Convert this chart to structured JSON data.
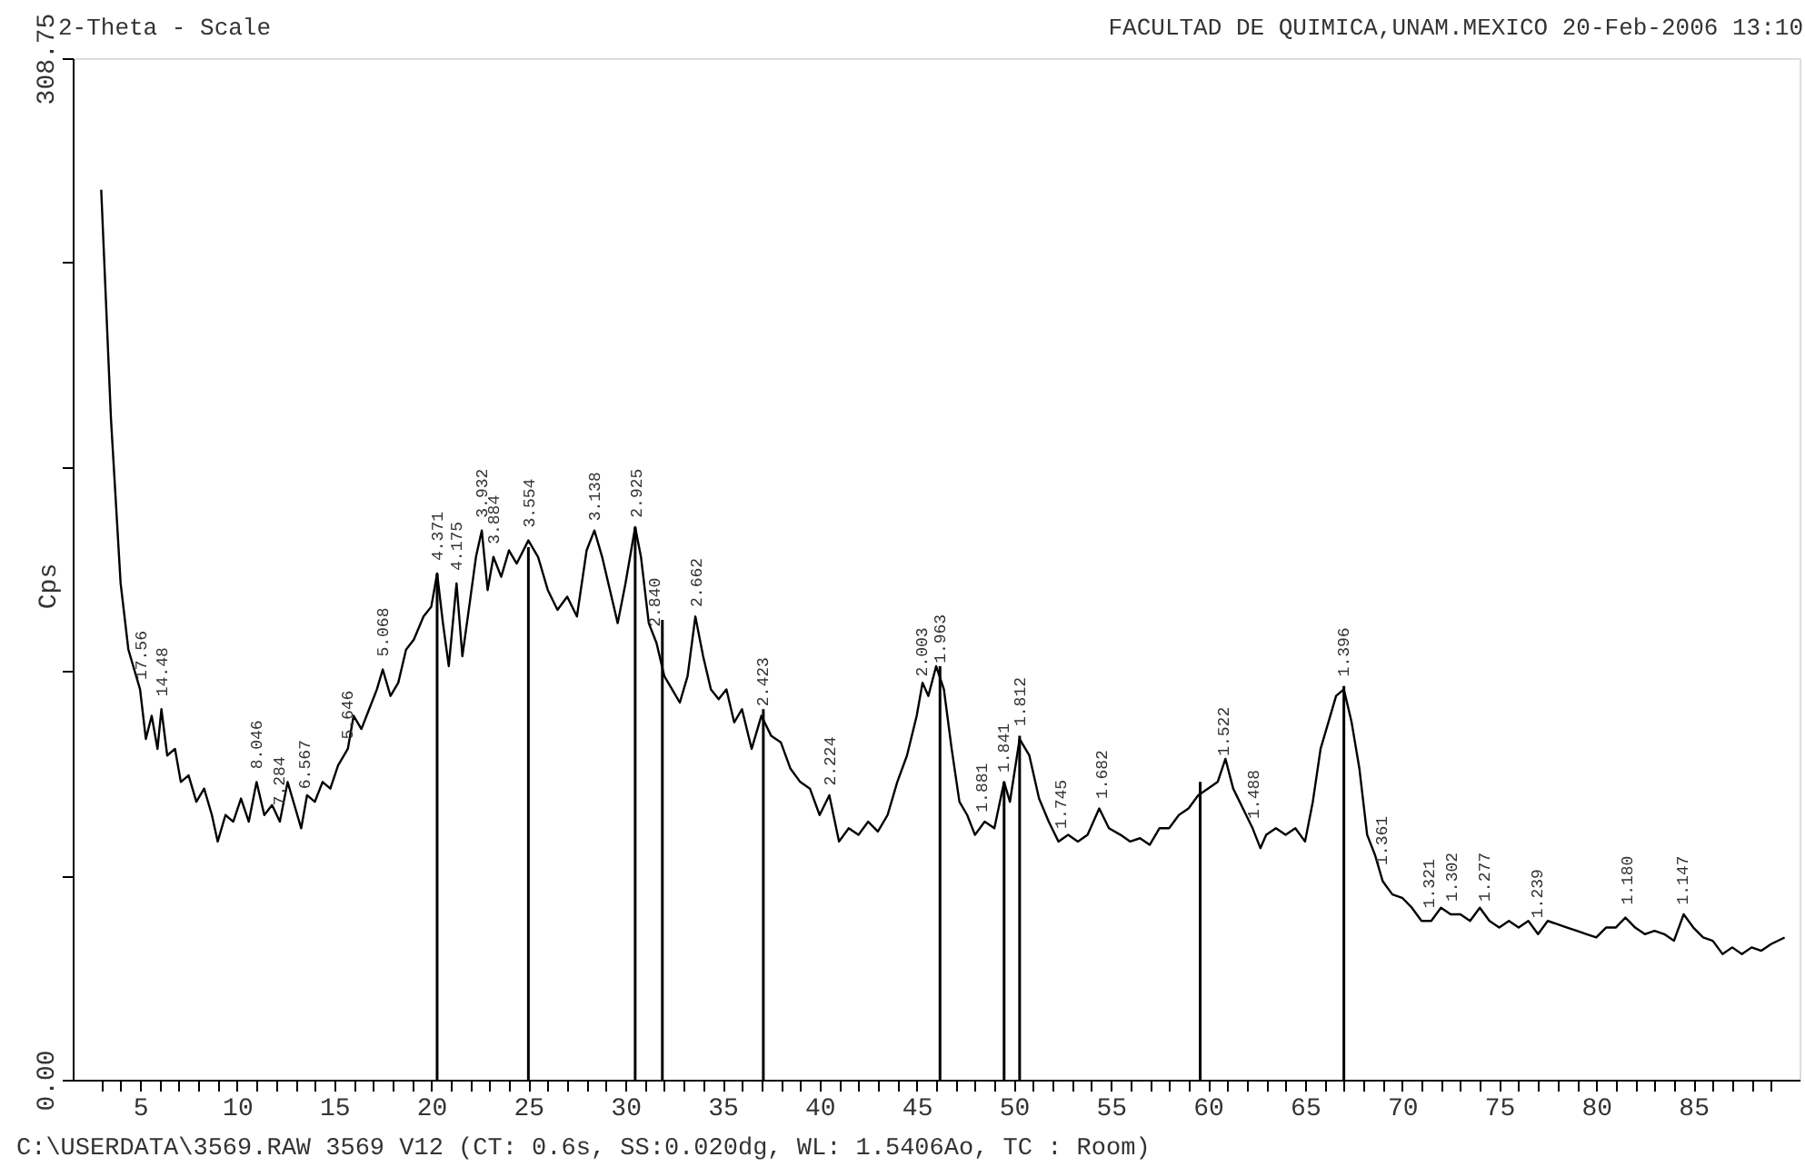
{
  "chart_data": {
    "type": "line",
    "title": "2-Theta - Scale",
    "ylabel": "Cps",
    "xlim": [
      2,
      90
    ],
    "ylim": [
      0,
      308.75
    ],
    "xticks": [
      {
        "value": 3,
        "label": null
      },
      {
        "value": 4,
        "label": null
      },
      5,
      {
        "value": 6,
        "label": null
      },
      {
        "value": 7,
        "label": null
      },
      {
        "value": 8,
        "label": null
      },
      {
        "value": 9,
        "label": null
      },
      10,
      {
        "value": 11,
        "label": null
      },
      {
        "value": 12,
        "label": null
      },
      {
        "value": 13,
        "label": null
      },
      {
        "value": 14,
        "label": null
      },
      15,
      {
        "value": 16,
        "label": null
      },
      {
        "value": 17,
        "label": null
      },
      {
        "value": 18,
        "label": null
      },
      {
        "value": 19,
        "label": null
      },
      20,
      {
        "value": 21,
        "label": null
      },
      {
        "value": 22,
        "label": null
      },
      {
        "value": 23,
        "label": null
      },
      {
        "value": 24,
        "label": null
      },
      25,
      {
        "value": 26,
        "label": null
      },
      {
        "value": 27,
        "label": null
      },
      {
        "value": 28,
        "label": null
      },
      {
        "value": 29,
        "label": null
      },
      30,
      {
        "value": 31,
        "label": null
      },
      {
        "value": 32,
        "label": null
      },
      {
        "value": 33,
        "label": null
      },
      {
        "value": 34,
        "label": null
      },
      35,
      {
        "value": 36,
        "label": null
      },
      {
        "value": 37,
        "label": null
      },
      {
        "value": 38,
        "label": null
      },
      {
        "value": 39,
        "label": null
      },
      40,
      {
        "value": 41,
        "label": null
      },
      {
        "value": 42,
        "label": null
      },
      {
        "value": 43,
        "label": null
      },
      {
        "value": 44,
        "label": null
      },
      45,
      {
        "value": 46,
        "label": null
      },
      {
        "value": 47,
        "label": null
      },
      {
        "value": 48,
        "label": null
      },
      {
        "value": 49,
        "label": null
      },
      50,
      {
        "value": 51,
        "label": null
      },
      {
        "value": 52,
        "label": null
      },
      {
        "value": 53,
        "label": null
      },
      {
        "value": 54,
        "label": null
      },
      55,
      {
        "value": 56,
        "label": null
      },
      {
        "value": 57,
        "label": null
      },
      {
        "value": 58,
        "label": null
      },
      {
        "value": 59,
        "label": null
      },
      60,
      {
        "value": 61,
        "label": null
      },
      {
        "value": 62,
        "label": null
      },
      {
        "value": 63,
        "label": null
      },
      {
        "value": 64,
        "label": null
      },
      65,
      {
        "value": 66,
        "label": null
      },
      {
        "value": 67,
        "label": null
      },
      {
        "value": 68,
        "label": null
      },
      {
        "value": 69,
        "label": null
      },
      70,
      {
        "value": 71,
        "label": null
      },
      {
        "value": 72,
        "label": null
      },
      {
        "value": 73,
        "label": null
      },
      {
        "value": 74,
        "label": null
      },
      75,
      {
        "value": 76,
        "label": null
      },
      {
        "value": 77,
        "label": null
      },
      {
        "value": 78,
        "label": null
      },
      {
        "value": 79,
        "label": null
      },
      80,
      {
        "value": 81,
        "label": null
      },
      {
        "value": 82,
        "label": null
      },
      {
        "value": 83,
        "label": null
      },
      {
        "value": 84,
        "label": null
      },
      85,
      {
        "value": 86,
        "label": null
      },
      {
        "value": 87,
        "label": null
      },
      {
        "value": 88,
        "label": null
      },
      {
        "value": 89,
        "label": null
      }
    ],
    "yticks": [
      {
        "value": 0,
        "label": "0.00"
      },
      {
        "value": 61.75,
        "label": null
      },
      {
        "value": 123.5,
        "label": null
      },
      {
        "value": 185.25,
        "label": null
      },
      {
        "value": 247,
        "label": null
      },
      {
        "value": 308.75,
        "label": "308.75"
      }
    ],
    "grid": false,
    "series": [
      {
        "color": "#000000",
        "x": [
          3.0,
          3.5,
          4.0,
          4.4,
          4.8,
          5.0,
          5.3,
          5.6,
          5.9,
          6.1,
          6.4,
          6.8,
          7.1,
          7.5,
          7.9,
          8.3,
          8.7,
          9.0,
          9.4,
          9.8,
          10.2,
          10.6,
          11.0,
          11.4,
          11.8,
          12.2,
          12.6,
          13.0,
          13.3,
          13.6,
          14.0,
          14.4,
          14.8,
          15.2,
          15.7,
          16.0,
          16.4,
          16.8,
          17.2,
          17.5,
          17.9,
          18.3,
          18.7,
          19.1,
          19.6,
          20.0,
          20.3,
          20.6,
          20.9,
          21.3,
          21.6,
          22.0,
          22.3,
          22.6,
          22.9,
          23.2,
          23.6,
          24.0,
          24.4,
          25.0,
          25.5,
          26.0,
          26.5,
          27.0,
          27.5,
          28.0,
          28.4,
          28.8,
          29.2,
          29.6,
          30.0,
          30.5,
          30.8,
          31.2,
          31.6,
          32.0,
          32.4,
          32.8,
          33.2,
          33.6,
          34.0,
          34.4,
          34.8,
          35.2,
          35.6,
          36.0,
          36.5,
          37.0,
          37.5,
          38.0,
          38.5,
          39.0,
          39.5,
          40.0,
          40.5,
          41.0,
          41.5,
          42.0,
          42.5,
          43.0,
          43.5,
          44.0,
          44.5,
          45.0,
          45.3,
          45.6,
          46.0,
          46.4,
          46.8,
          47.2,
          47.6,
          48.0,
          48.5,
          49.0,
          49.5,
          49.8,
          50.3,
          50.8,
          51.3,
          51.8,
          52.3,
          52.8,
          53.3,
          53.8,
          54.4,
          54.9,
          55.5,
          56.0,
          56.5,
          57.0,
          57.5,
          58.0,
          58.5,
          59.0,
          59.5,
          60.0,
          60.5,
          60.9,
          61.3,
          61.8,
          62.3,
          62.7,
          63.0,
          63.5,
          64.0,
          64.5,
          65.0,
          65.4,
          65.8,
          66.2,
          66.6,
          67.0,
          67.4,
          67.8,
          68.2,
          68.6,
          69.0,
          69.5,
          70.0,
          70.5,
          71.0,
          71.5,
          72.0,
          72.5,
          73.0,
          73.5,
          74.0,
          74.5,
          75.0,
          75.5,
          76.0,
          76.5,
          77.0,
          77.5,
          78.0,
          78.5,
          79.0,
          79.5,
          80.0,
          80.5,
          81.0,
          81.5,
          82.0,
          82.5,
          83.0,
          83.5,
          84.0,
          84.5,
          85.0,
          85.5,
          86.0,
          86.5,
          87.0,
          87.5,
          88.0,
          88.5,
          89.0,
          89.7
        ],
        "values": [
          269,
          200,
          150,
          130,
          122,
          118,
          103,
          110,
          100,
          112,
          98,
          100,
          90,
          92,
          84,
          88,
          80,
          72,
          80,
          78,
          85,
          78,
          90,
          80,
          83,
          78,
          90,
          82,
          76,
          86,
          84,
          90,
          88,
          95,
          100,
          110,
          106,
          112,
          118,
          124,
          116,
          120,
          130,
          133,
          140,
          143,
          153,
          138,
          125,
          150,
          128,
          145,
          158,
          166,
          148,
          158,
          152,
          160,
          156,
          163,
          158,
          148,
          142,
          146,
          140,
          160,
          166,
          158,
          148,
          138,
          150,
          167,
          158,
          138,
          132,
          122,
          118,
          114,
          122,
          140,
          128,
          118,
          115,
          118,
          108,
          112,
          100,
          110,
          104,
          102,
          94,
          90,
          88,
          80,
          86,
          72,
          76,
          74,
          78,
          75,
          80,
          90,
          98,
          110,
          120,
          116,
          125,
          118,
          100,
          84,
          80,
          74,
          78,
          76,
          90,
          84,
          103,
          98,
          85,
          78,
          72,
          74,
          72,
          74,
          82,
          76,
          74,
          72,
          73,
          71,
          76,
          76,
          80,
          82,
          86,
          88,
          90,
          97,
          88,
          82,
          76,
          70,
          74,
          76,
          74,
          76,
          72,
          84,
          100,
          108,
          116,
          118,
          108,
          94,
          74,
          68,
          60,
          56,
          55,
          52,
          48,
          48,
          52,
          50,
          50,
          48,
          52,
          48,
          46,
          48,
          46,
          48,
          44,
          48,
          47,
          46,
          45,
          44,
          43,
          46,
          46,
          49,
          46,
          44,
          45,
          44,
          42,
          50,
          46,
          43,
          42,
          38,
          40,
          38,
          40,
          39,
          41,
          43
        ]
      },
      {
        "type": "bar",
        "color": "#000000",
        "x": [
          20.3,
          25.0,
          30.5,
          31.9,
          37.1,
          46.2,
          49.5,
          50.3,
          59.6,
          67.0
        ],
        "values": [
          153,
          161,
          167,
          139,
          112,
          125,
          90,
          104,
          90,
          119
        ]
      }
    ],
    "annotations": [
      "FACULTAD DE QUIMICA,UNAM.MEXICO 20-Feb-2006 13:10",
      "C:\\USERDATA\\3569.RAW 3569 V12 (CT:  0.6s, SS:0.020dg, WL: 1.5406Ao, TC : Room)",
      {
        "text": "17.56",
        "x": 5.03,
        "y": 117
      },
      {
        "text": "14.48",
        "x": 6.1,
        "y": 112
      },
      {
        "text": "8.046",
        "x": 10.99,
        "y": 90
      },
      {
        "text": "7.284",
        "x": 12.14,
        "y": 79
      },
      {
        "text": "6.567",
        "x": 13.47,
        "y": 84
      },
      {
        "text": "5.646",
        "x": 15.68,
        "y": 99
      },
      {
        "text": "5.068",
        "x": 17.48,
        "y": 124
      },
      {
        "text": "4.371",
        "x": 20.3,
        "y": 153
      },
      {
        "text": "4.175",
        "x": 21.3,
        "y": 150
      },
      {
        "text": "3.932",
        "x": 22.59,
        "y": 166
      },
      {
        "text": "3.884",
        "x": 23.2,
        "y": 158
      },
      {
        "text": "3.554",
        "x": 25.04,
        "y": 163
      },
      {
        "text": "3.138",
        "x": 28.42,
        "y": 165
      },
      {
        "text": "2.925",
        "x": 30.54,
        "y": 166
      },
      {
        "text": "2.840",
        "x": 31.47,
        "y": 133
      },
      {
        "text": "2.662",
        "x": 33.64,
        "y": 139
      },
      {
        "text": "2.423",
        "x": 37.08,
        "y": 109
      },
      {
        "text": "2.224",
        "x": 40.53,
        "y": 85
      },
      {
        "text": "2.003",
        "x": 45.24,
        "y": 118
      },
      {
        "text": "1.963",
        "x": 46.21,
        "y": 122
      },
      {
        "text": "1.881",
        "x": 48.35,
        "y": 77
      },
      {
        "text": "1.841",
        "x": 49.47,
        "y": 89
      },
      {
        "text": "1.812",
        "x": 50.31,
        "y": 103
      },
      {
        "text": "1.745",
        "x": 52.39,
        "y": 72
      },
      {
        "text": "1.682",
        "x": 54.52,
        "y": 81
      },
      {
        "text": "1.522",
        "x": 60.8,
        "y": 94
      },
      {
        "text": "1.488",
        "x": 62.34,
        "y": 75
      },
      {
        "text": "1.396",
        "x": 66.97,
        "y": 118
      },
      {
        "text": "1.361",
        "x": 68.94,
        "y": 61
      },
      {
        "text": "1.321",
        "x": 71.35,
        "y": 48
      },
      {
        "text": "1.302",
        "x": 72.56,
        "y": 50
      },
      {
        "text": "1.277",
        "x": 74.23,
        "y": 50
      },
      {
        "text": "1.239",
        "x": 76.94,
        "y": 45
      },
      {
        "text": "1.180",
        "x": 81.56,
        "y": 49
      },
      {
        "text": "1.147",
        "x": 84.42,
        "y": 49
      }
    ]
  }
}
